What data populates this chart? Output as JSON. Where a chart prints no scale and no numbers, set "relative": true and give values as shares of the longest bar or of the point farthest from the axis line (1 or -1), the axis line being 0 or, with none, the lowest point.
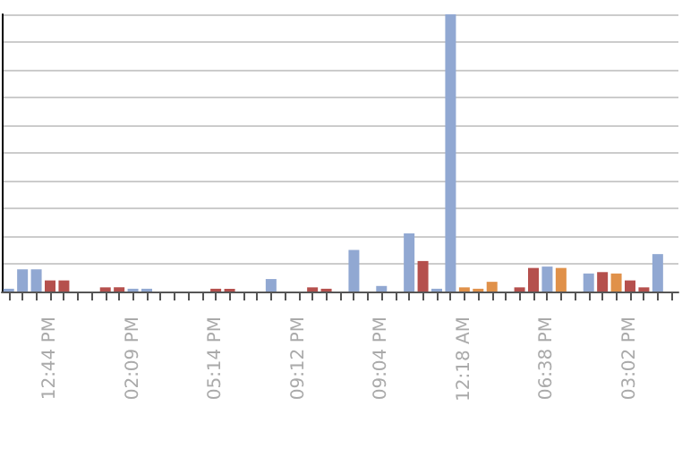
{
  "chart_data": {
    "type": "bar",
    "relative": true,
    "grid": "y",
    "categories": [
      null,
      null,
      null,
      "12:44 PM",
      null,
      null,
      null,
      null,
      null,
      "02:09 PM",
      null,
      null,
      null,
      null,
      null,
      "05:14 PM",
      null,
      null,
      null,
      null,
      null,
      "09:12 PM",
      null,
      null,
      null,
      null,
      null,
      "09:04 PM",
      null,
      null,
      null,
      null,
      null,
      "12:18 AM",
      null,
      null,
      null,
      null,
      null,
      "06:38 PM",
      null,
      null,
      null,
      null,
      null,
      "03:02 PM",
      null,
      null,
      null
    ],
    "values": [
      0.01,
      0.08,
      0.08,
      0.04,
      0.04,
      null,
      null,
      0.015,
      0.015,
      0.01,
      0.01,
      null,
      null,
      null,
      null,
      0.01,
      0.01,
      null,
      null,
      0.045,
      null,
      null,
      0.015,
      0.01,
      null,
      0.15,
      null,
      0.02,
      null,
      0.21,
      0.11,
      0.01,
      1,
      0.015,
      0.01,
      0.035,
      null,
      0.015,
      0.085,
      0.09,
      0.085,
      null,
      0.065,
      0.07,
      0.065,
      0.04,
      0.015,
      0.135,
      null
    ],
    "colors": [
      "#91a8d2",
      "#91a8d2",
      "#91a8d2",
      "#b5504d",
      "#b5504d",
      "#91a8d2",
      "#91a8d2",
      "#b5504d",
      "#b5504d",
      "#91a8d2",
      "#91a8d2",
      "#91a8d2",
      "#91a8d2",
      "#91a8d2",
      "#91a8d2",
      "#b5504d",
      "#b5504d",
      "#91a8d2",
      "#91a8d2",
      "#91a8d2",
      "#91a8d2",
      "#91a8d2",
      "#b5504d",
      "#b5504d",
      "#91a8d2",
      "#91a8d2",
      "#91a8d2",
      "#91a8d2",
      "#91a8d2",
      "#91a8d2",
      "#b5504d",
      "#91a8d2",
      "#91a8d2",
      "#e0914a",
      "#e0914a",
      "#e0914a",
      "#91a8d2",
      "#b5504d",
      "#b5504d",
      "#91a8d2",
      "#e0914a",
      "#91a8d2",
      "#91a8d2",
      "#b5504d",
      "#e0914a",
      "#b5504d",
      "#b5504d",
      "#91a8d2",
      "#91a8d2"
    ]
  }
}
